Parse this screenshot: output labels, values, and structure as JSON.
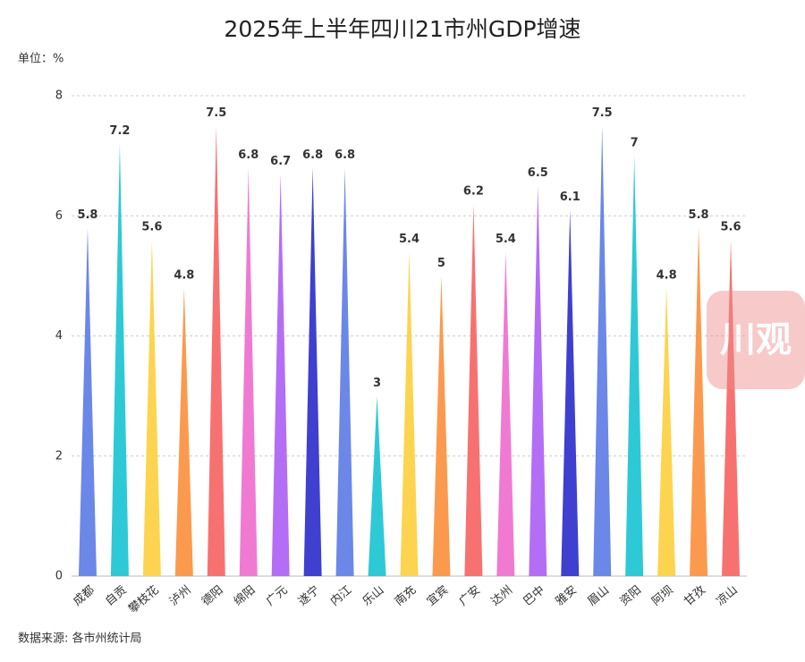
{
  "chart_data": {
    "type": "spike",
    "title": "2025年上半年四川21市州GDP增速",
    "unit_label": "单位：%",
    "source": "数据来源: 各市州统计局",
    "categories": [
      "成都",
      "自贡",
      "攀枝花",
      "泸州",
      "德阳",
      "绵阳",
      "广元",
      "遂宁",
      "内江",
      "乐山",
      "南充",
      "宜宾",
      "广安",
      "达州",
      "巴中",
      "雅安",
      "眉山",
      "资阳",
      "阿坝",
      "甘孜",
      "凉山"
    ],
    "values": [
      5.8,
      7.2,
      5.6,
      4.8,
      7.5,
      6.8,
      6.7,
      6.8,
      6.8,
      3,
      5.4,
      5,
      6.2,
      5.4,
      6.5,
      6.1,
      7.5,
      7,
      4.8,
      5.8,
      5.6
    ],
    "colors": [
      "#6b87e8",
      "#2ec9d6",
      "#fdd44f",
      "#fb9a4e",
      "#f87171",
      "#f07ad2",
      "#b46ef5",
      "#3f3fd0",
      "#6b87e8",
      "#2ec9d6",
      "#fdd44f",
      "#fb9a4e",
      "#f87171",
      "#f07ad2",
      "#b46ef5",
      "#3f3fd0",
      "#6b87e8",
      "#2ec9d6",
      "#fdd44f",
      "#fb9a4e",
      "#f87171"
    ],
    "ylim": [
      0,
      8
    ],
    "yticks": [
      0,
      2,
      4,
      6,
      8
    ],
    "grid": true
  },
  "watermark": "川观"
}
